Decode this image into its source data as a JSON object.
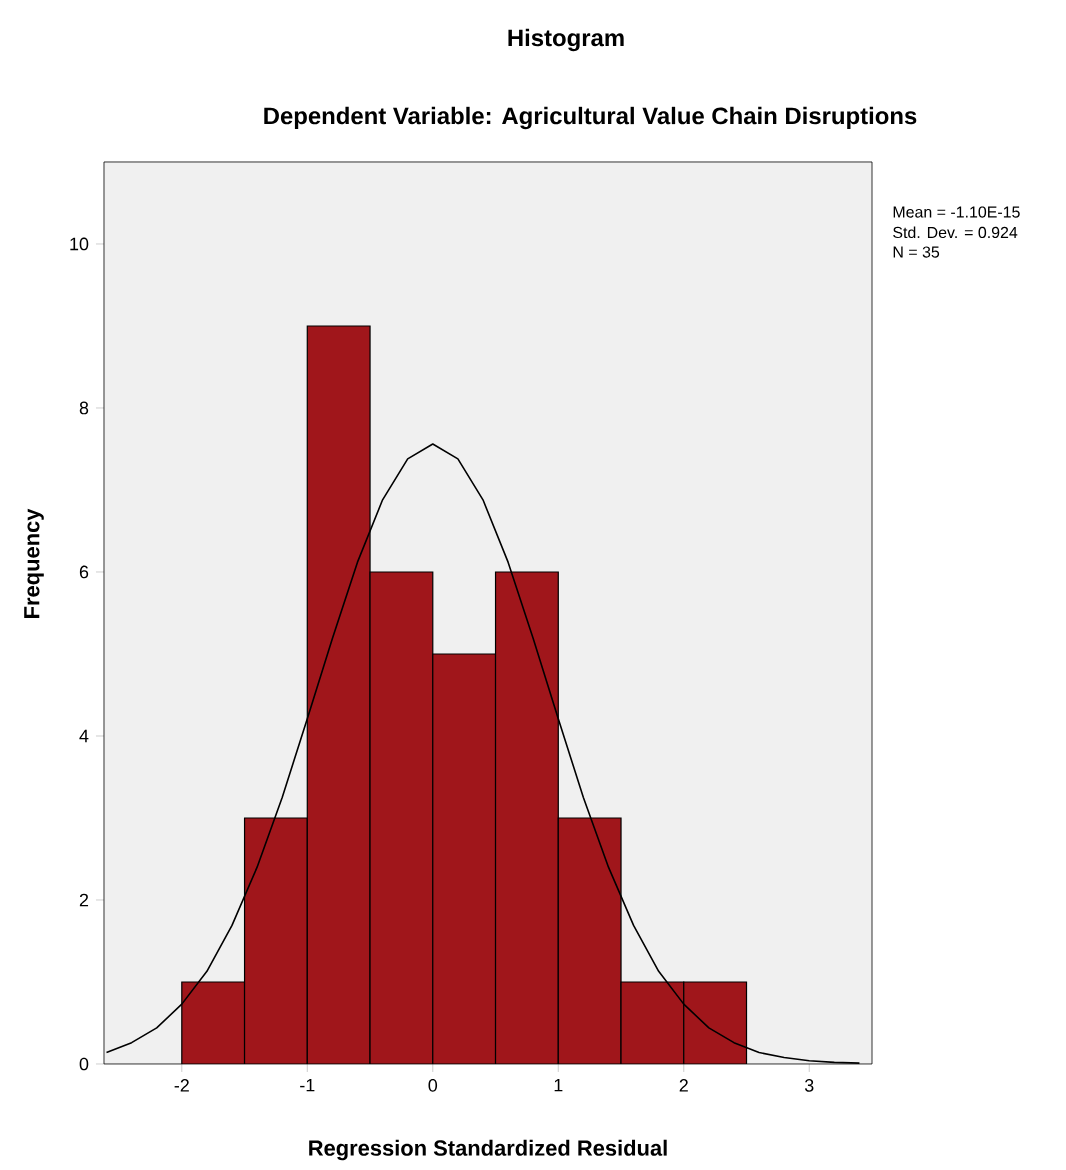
{
  "chart_data": {
    "type": "histogram",
    "title": "Histogram",
    "subtitle": "Dependent Variable: Agricultural Value Chain Disruptions",
    "xlabel": "Regression Standardized Residual",
    "ylabel": "Frequency",
    "bins": [
      -2,
      -1.5,
      -1,
      -0.5,
      0,
      0.5,
      1,
      1.5,
      2,
      2.5
    ],
    "values": [
      1,
      3,
      9,
      6,
      5,
      6,
      3,
      1,
      1
    ],
    "color": "#a0161b",
    "series": [
      {
        "type": "line",
        "color": "#000000",
        "x": [
          -2.6,
          -2.4,
          -2.2,
          -2.0,
          -1.8,
          -1.6,
          -1.4,
          -1.2,
          -1.0,
          -0.8,
          -0.6,
          -0.4,
          -0.2,
          0,
          0.2,
          0.4,
          0.6,
          0.8,
          1.0,
          1.2,
          1.4,
          1.6,
          1.8,
          2.0,
          2.2,
          2.4,
          2.6,
          2.8,
          3.0,
          3.2,
          3.4
        ],
        "values": [
          0.14,
          0.26,
          0.44,
          0.73,
          1.13,
          1.69,
          2.4,
          3.25,
          4.21,
          5.19,
          6.12,
          6.88,
          7.38,
          7.56,
          7.38,
          6.88,
          6.12,
          5.19,
          4.21,
          3.25,
          2.4,
          1.69,
          1.13,
          0.73,
          0.44,
          0.26,
          0.14,
          0.08,
          0.04,
          0.02,
          0.01
        ]
      }
    ],
    "xlim": [
      -2.62,
      3.5
    ],
    "ylim": [
      0,
      11
    ],
    "xticks": [
      -2,
      -1,
      0,
      1,
      2,
      3
    ],
    "yticks": [
      0,
      2,
      4,
      6,
      8,
      10
    ],
    "grid": false,
    "marker": "none",
    "line_style": "solid",
    "annotations": [
      "Mean = -1.10E-15",
      "Std. Dev. = 0.924",
      "N = 35"
    ]
  }
}
